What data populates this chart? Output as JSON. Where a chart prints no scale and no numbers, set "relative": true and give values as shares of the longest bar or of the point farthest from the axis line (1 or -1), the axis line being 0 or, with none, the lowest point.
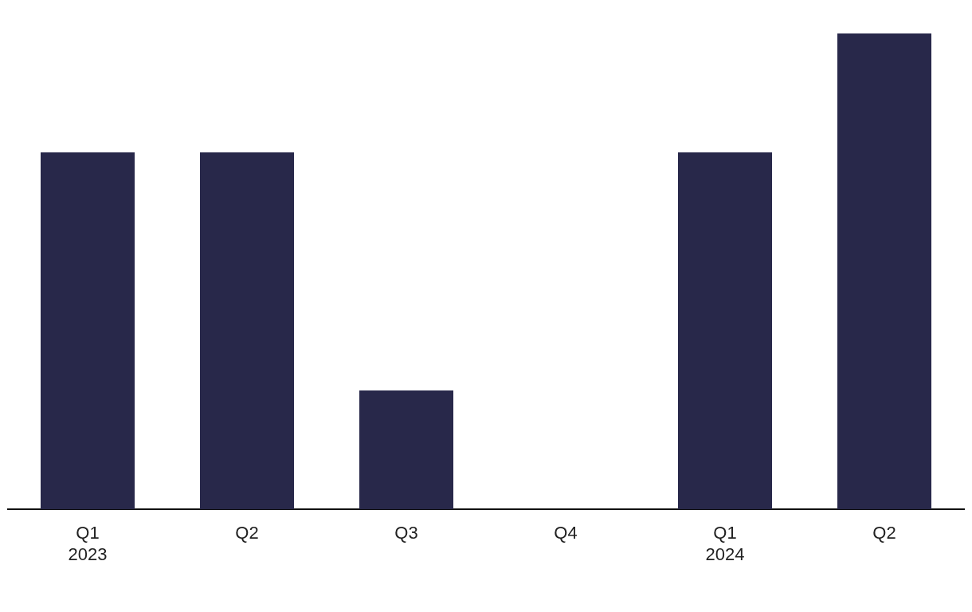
{
  "chart_data": {
    "type": "bar",
    "relative": true,
    "categories": [
      "Q1\n2023",
      "Q2",
      "Q3",
      "Q4",
      "Q1\n2024",
      "Q2"
    ],
    "values": [
      0.75,
      0.75,
      0.25,
      0,
      0.75,
      1
    ],
    "color": "#28284a",
    "grid": false,
    "legend": false
  }
}
